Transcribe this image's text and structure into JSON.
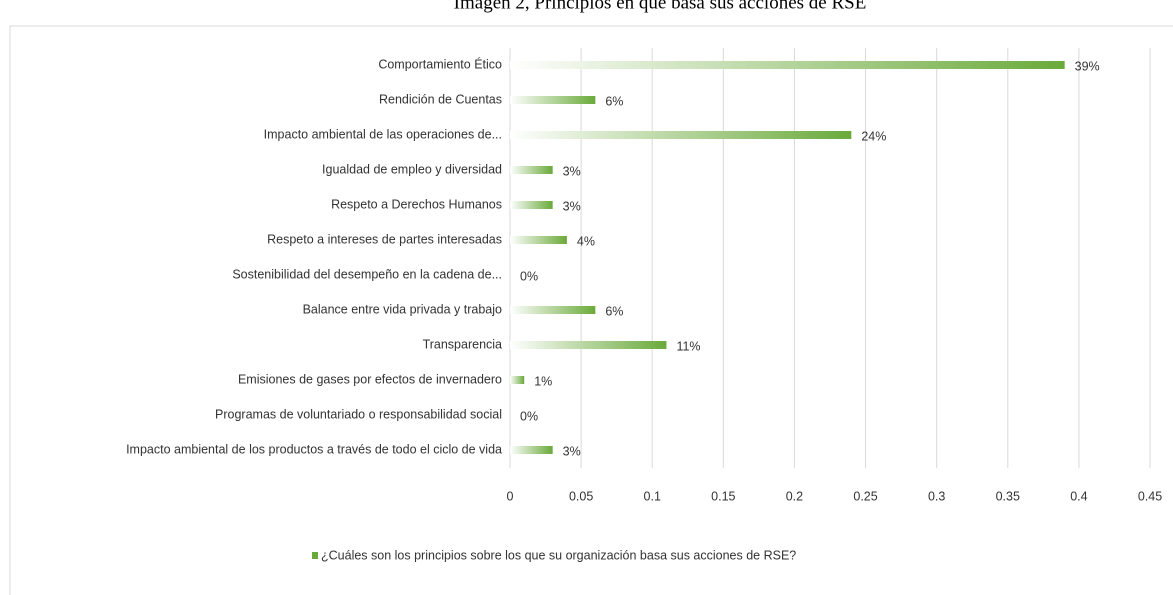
{
  "chart_data": {
    "type": "bar",
    "orientation": "horizontal",
    "title": "Imagen 2, Principios en que basa sus acciones de RSE",
    "categories": [
      "Comportamiento Ético",
      "Rendición de Cuentas",
      "Impacto ambiental de las operaciones de...",
      "Igualdad de empleo y diversidad",
      "Respeto a Derechos Humanos",
      "Respeto a intereses de partes interesadas",
      "Sostenibilidad del desempeño en la cadena de...",
      "Balance entre vida privada y trabajo",
      "Transparencia",
      "Emisiones de gases por efectos de invernadero",
      "Programas de voluntariado o responsabilidad social",
      "Impacto ambiental de los productos a través de todo el ciclo de vida"
    ],
    "series": [
      {
        "name": "¿Cuáles son los principios sobre los que su organización basa sus acciones de RSE?",
        "color": "#6aaa3a",
        "values": [
          0.39,
          0.06,
          0.24,
          0.03,
          0.03,
          0.04,
          0,
          0.06,
          0.11,
          0.01,
          0,
          0.03
        ],
        "value_labels": [
          "39%",
          "6%",
          "24%",
          "3%",
          "3%",
          "4%",
          "0%",
          "6%",
          "11%",
          "1%",
          "0%",
          "3%"
        ]
      }
    ],
    "xlim": [
      0,
      0.45
    ],
    "xticks": [
      0,
      0.05,
      0.1,
      0.15,
      0.2,
      0.25,
      0.3,
      0.35,
      0.4,
      0.45
    ],
    "grid": true,
    "legend": "bottom"
  }
}
